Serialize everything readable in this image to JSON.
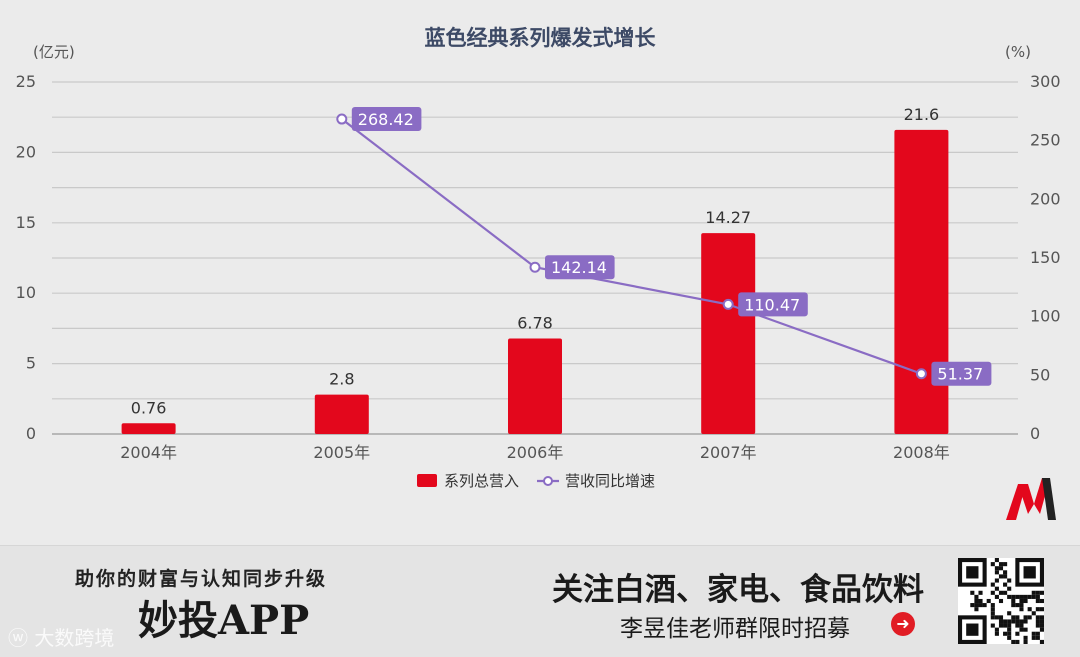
{
  "chart_data": {
    "type": "bar",
    "title": "蓝色经典系列爆发式增长",
    "categories": [
      "2004年",
      "2005年",
      "2006年",
      "2007年",
      "2008年"
    ],
    "y_left": {
      "unit": "(亿元)",
      "range": [
        0,
        25
      ],
      "ticks": [
        0,
        5,
        10,
        15,
        20,
        25
      ]
    },
    "y_right": {
      "unit": "(%)",
      "range": [
        0,
        300
      ],
      "ticks": [
        0,
        50,
        100,
        150,
        200,
        250,
        300
      ]
    },
    "series": [
      {
        "name": "系列总营入",
        "kind": "bar",
        "axis": "left",
        "color": "#e3071c",
        "values": [
          0.76,
          2.8,
          6.78,
          14.27,
          21.6
        ],
        "labels": [
          "0.76",
          "2.8",
          "6.78",
          "14.27",
          "21.6"
        ]
      },
      {
        "name": "营收同比增速",
        "kind": "line",
        "axis": "right",
        "color": "#8a6cc4",
        "values": [
          null,
          268.42,
          142.14,
          110.47,
          51.37
        ],
        "labels": [
          "",
          "268.42",
          "142.14",
          "110.47",
          "51.37"
        ]
      }
    ],
    "grid": true,
    "legend": "bottom-center"
  },
  "banner": {
    "left_tagline": "助你的财富与认知同步升级",
    "app_name": "妙投APP",
    "watermark": "大数跨境",
    "right_title": "关注白酒、家电、食品饮料",
    "right_subtitle": "李昱佳老师群限时招募",
    "arrow_icon": "arrow-right-circle-icon",
    "qr_icon": "qr-code-icon"
  },
  "logo": {
    "icon": "m-brand-logo-icon",
    "colors": [
      "#e3071c",
      "#222222"
    ]
  }
}
